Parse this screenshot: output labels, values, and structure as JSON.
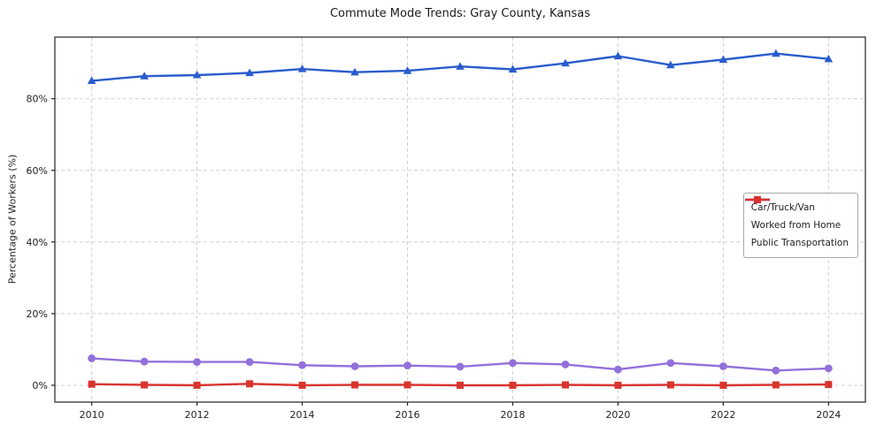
{
  "chart_data": {
    "type": "line",
    "title": "Commute Mode Trends: Gray County, Kansas",
    "xlabel": "",
    "ylabel": "Percentage of Workers (%)",
    "x": [
      2010,
      2011,
      2012,
      2013,
      2014,
      2015,
      2016,
      2017,
      2018,
      2019,
      2020,
      2021,
      2022,
      2023,
      2024
    ],
    "series": [
      {
        "name": "Car/Truck/Van",
        "color": "#2a5ccc",
        "marker": "triangle",
        "values": [
          85.0,
          86.3,
          86.6,
          87.2,
          88.3,
          87.4,
          87.8,
          89.0,
          88.2,
          89.9,
          91.9,
          89.4,
          90.9,
          92.6,
          91.1
        ]
      },
      {
        "name": "Worked from Home",
        "color": "#9370db",
        "marker": "circle",
        "values": [
          7.5,
          6.6,
          6.5,
          6.5,
          5.6,
          5.3,
          5.5,
          5.2,
          6.2,
          5.8,
          4.4,
          6.2,
          5.3,
          4.1,
          4.7
        ]
      },
      {
        "name": "Public Transportation",
        "color": "#d9342e",
        "marker": "square",
        "values": [
          0.3,
          0.1,
          0.0,
          0.4,
          0.0,
          0.1,
          0.1,
          0.0,
          0.0,
          0.1,
          0.0,
          0.1,
          0.0,
          0.1,
          0.2
        ]
      }
    ],
    "xticks": [
      2010,
      2012,
      2014,
      2016,
      2018,
      2020,
      2022,
      2024
    ],
    "yticks": [
      0,
      20,
      40,
      60,
      80
    ],
    "ytick_labels": [
      "0%",
      "20%",
      "40%",
      "60%",
      "80%"
    ],
    "xlim": [
      2009.3,
      2024.7
    ],
    "ylim": [
      -4.7,
      97.2
    ],
    "grid": true,
    "grid_style": "dashed",
    "legend": {
      "position": "center-right",
      "entries": [
        "Car/Truck/Van",
        "Worked from Home",
        "Public Transportation"
      ]
    }
  }
}
